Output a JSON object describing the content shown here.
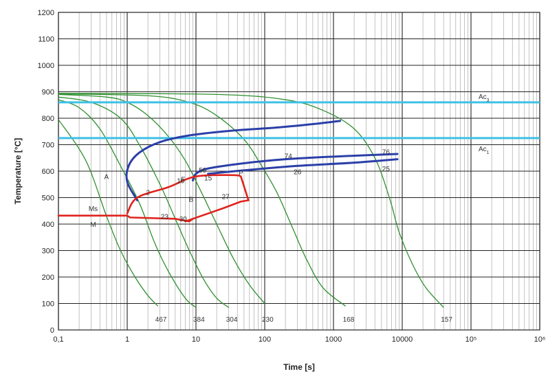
{
  "chart_data": {
    "type": "line",
    "xlabel": "Time [s]",
    "ylabel": "Temperature [°C]",
    "x_scale": "log",
    "xlim": [
      0.1,
      1000000
    ],
    "ylim": [
      0,
      1200
    ],
    "y_ticks": [
      0,
      100,
      200,
      300,
      400,
      500,
      600,
      700,
      800,
      900,
      1000,
      1100,
      1200
    ],
    "x_ticks": [
      {
        "value": 0.1,
        "label": "0,1"
      },
      {
        "value": 1,
        "label": "1"
      },
      {
        "value": 10,
        "label": "10"
      },
      {
        "value": 100,
        "label": "100"
      },
      {
        "value": 1000,
        "label": "1000"
      },
      {
        "value": 10000,
        "label": "10000"
      },
      {
        "value": 100000,
        "label": "10⁵"
      },
      {
        "value": 1000000,
        "label": "10⁶"
      }
    ],
    "grid": "on (major and minor, log x)",
    "colors": {
      "grid_major": "#222222",
      "grid_minor": "#9a9a9a",
      "ac_lines": "#3ec0e6",
      "cooling_curves": "#2f8f2f",
      "ferrite_pearlite": "#2b3fa8",
      "bainite_ms": "#e0231c"
    },
    "critical_temperatures": [
      {
        "name": "Ac3",
        "label_main": "Ac",
        "label_sub": "3",
        "y": 860
      },
      {
        "name": "Ac1",
        "label_main": "Ac",
        "label_sub": "1",
        "y": 725
      }
    ],
    "cooling_curves": [
      {
        "hardness": "467",
        "points": [
          [
            0.1,
            795
          ],
          [
            0.25,
            640
          ],
          [
            0.5,
            430
          ],
          [
            0.8,
            300
          ],
          [
            1.3,
            200
          ],
          [
            2.0,
            130
          ],
          [
            2.8,
            90
          ]
        ]
      },
      {
        "hardness": "384",
        "points": [
          [
            0.1,
            870
          ],
          [
            0.2,
            840
          ],
          [
            0.4,
            760
          ],
          [
            0.8,
            620
          ],
          [
            1.5,
            480
          ],
          [
            2.5,
            330
          ],
          [
            4,
            220
          ],
          [
            7,
            120
          ],
          [
            10,
            85
          ]
        ]
      },
      {
        "hardness": "304",
        "points": [
          [
            0.1,
            880
          ],
          [
            0.3,
            860
          ],
          [
            0.8,
            800
          ],
          [
            1.5,
            700
          ],
          [
            3,
            550
          ],
          [
            5,
            420
          ],
          [
            8,
            300
          ],
          [
            13,
            190
          ],
          [
            20,
            120
          ],
          [
            30,
            85
          ]
        ]
      },
      {
        "hardness": "230",
        "points": [
          [
            0.1,
            890
          ],
          [
            0.5,
            880
          ],
          [
            1,
            860
          ],
          [
            2,
            810
          ],
          [
            4,
            730
          ],
          [
            7,
            640
          ],
          [
            12,
            520
          ],
          [
            20,
            400
          ],
          [
            35,
            270
          ],
          [
            60,
            170
          ],
          [
            100,
            100
          ]
        ]
      },
      {
        "hardness": "168",
        "points": [
          [
            0.1,
            892
          ],
          [
            2,
            885
          ],
          [
            8,
            860
          ],
          [
            20,
            810
          ],
          [
            50,
            720
          ],
          [
            90,
            620
          ],
          [
            150,
            520
          ],
          [
            250,
            390
          ],
          [
            400,
            270
          ],
          [
            700,
            160
          ],
          [
            1500,
            90
          ]
        ]
      },
      {
        "hardness": "157",
        "points": [
          [
            0.1,
            894
          ],
          [
            20,
            890
          ],
          [
            200,
            870
          ],
          [
            700,
            830
          ],
          [
            2000,
            760
          ],
          [
            4000,
            650
          ],
          [
            6500,
            500
          ],
          [
            9000,
            370
          ],
          [
            14000,
            250
          ],
          [
            22000,
            160
          ],
          [
            40000,
            85
          ]
        ]
      }
    ],
    "transformation_curves": [
      {
        "name": "ferrite-start",
        "color_key": "ferrite_pearlite",
        "points": [
          [
            1.4,
            490
          ],
          [
            1.0,
            560
          ],
          [
            1.05,
            620
          ],
          [
            1.5,
            670
          ],
          [
            3,
            710
          ],
          [
            8,
            735
          ],
          [
            30,
            752
          ],
          [
            150,
            765
          ],
          [
            600,
            780
          ],
          [
            1250,
            790
          ]
        ]
      },
      {
        "name": "pearlite-start",
        "color_key": "ferrite_pearlite",
        "points": [
          [
            9,
            565
          ],
          [
            10,
            590
          ],
          [
            15,
            610
          ],
          [
            50,
            630
          ],
          [
            200,
            645
          ],
          [
            1000,
            655
          ],
          [
            8500,
            665
          ]
        ]
      },
      {
        "name": "pearlite-end",
        "color_key": "ferrite_pearlite",
        "points": [
          [
            15,
            590
          ],
          [
            60,
            605
          ],
          [
            300,
            620
          ],
          [
            2000,
            632
          ],
          [
            8500,
            645
          ]
        ]
      },
      {
        "name": "bainite-start",
        "color_key": "bainite_ms",
        "points": [
          [
            1.0,
            440
          ],
          [
            1.4,
            500
          ],
          [
            4,
            540
          ],
          [
            10,
            580
          ],
          [
            35,
            585
          ],
          [
            45,
            580
          ]
        ]
      },
      {
        "name": "bainite-end",
        "color_key": "bainite_ms",
        "points": [
          [
            7,
            410
          ],
          [
            9,
            420
          ],
          [
            25,
            460
          ],
          [
            45,
            485
          ],
          [
            58,
            490
          ],
          [
            45,
            580
          ]
        ]
      },
      {
        "name": "ms-line",
        "color_key": "bainite_ms",
        "points": [
          [
            0.1,
            432
          ],
          [
            1.0,
            432
          ],
          [
            1.1,
            425
          ],
          [
            5,
            420
          ],
          [
            8,
            410
          ],
          [
            9,
            420
          ]
        ]
      }
    ],
    "phase_labels": [
      {
        "text": "A",
        "x": 0.5,
        "y": 570
      },
      {
        "text": "F",
        "x": 6.5,
        "y": 560
      },
      {
        "text": "P",
        "x": 45,
        "y": 585
      },
      {
        "text": "B",
        "x": 8.5,
        "y": 485
      },
      {
        "text": "Ms",
        "x": 0.32,
        "y": 450
      },
      {
        "text": "M",
        "x": 0.32,
        "y": 390
      }
    ],
    "percentage_labels": [
      {
        "text": "2",
        "x": 2.0,
        "y": 510
      },
      {
        "text": "10",
        "x": 6.0,
        "y": 555
      },
      {
        "text": "50",
        "x": 12.5,
        "y": 595
      },
      {
        "text": "15",
        "x": 15,
        "y": 565
      },
      {
        "text": "27",
        "x": 27,
        "y": 495
      },
      {
        "text": "23",
        "x": 3.5,
        "y": 420
      },
      {
        "text": "30",
        "x": 6.5,
        "y": 410
      },
      {
        "text": "74",
        "x": 220,
        "y": 648
      },
      {
        "text": "26",
        "x": 300,
        "y": 588
      },
      {
        "text": "76",
        "x": 5800,
        "y": 663
      },
      {
        "text": "25",
        "x": 5800,
        "y": 600
      }
    ]
  }
}
